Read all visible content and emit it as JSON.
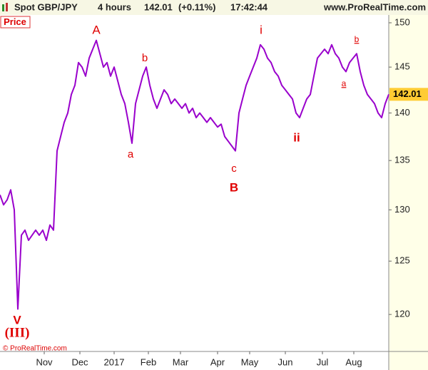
{
  "header": {
    "symbol": "Spot GBP/JPY",
    "timeframe": "4 hours",
    "change": "(+0.11%)",
    "time": "17:42:44",
    "site": "www.ProRealTime.com"
  },
  "panel_label": "Price",
  "copyright": "© ProRealTime.com",
  "chart_data": {
    "type": "line",
    "log_scale": true,
    "color": "#9900cc",
    "x": [
      0,
      1,
      2,
      3,
      4,
      5,
      6,
      7,
      8,
      9,
      10,
      11,
      12,
      13,
      14,
      15,
      16,
      17,
      18,
      19,
      20,
      21,
      22,
      23,
      24,
      25,
      26,
      27,
      28,
      29,
      30,
      31,
      32,
      33,
      34,
      35,
      36,
      37,
      38,
      39,
      40,
      41,
      42,
      43,
      44,
      45,
      46,
      47,
      48,
      49,
      50,
      51,
      52,
      53,
      54,
      55,
      56,
      57,
      58,
      59,
      60,
      61,
      62,
      63,
      64,
      65,
      66,
      67,
      68,
      69,
      70,
      71,
      72,
      73,
      74,
      75,
      76,
      77,
      78,
      79,
      80,
      81,
      82,
      83,
      84,
      85,
      86,
      87,
      88,
      89,
      90,
      91,
      92,
      93,
      94,
      95,
      96,
      97,
      98,
      99,
      100,
      101,
      102,
      103,
      104,
      105,
      106,
      107,
      108,
      109
    ],
    "values": [
      131.5,
      130.5,
      131,
      132,
      130,
      120.5,
      127.5,
      128,
      127,
      127.5,
      128,
      127.5,
      128,
      127,
      128.5,
      128,
      136,
      137.5,
      139,
      140,
      142,
      143,
      145.5,
      145,
      144,
      146,
      147,
      148,
      146.5,
      145,
      145.5,
      144,
      145,
      143.5,
      142,
      141,
      139,
      136.8,
      141,
      142.5,
      144,
      145,
      143,
      141.5,
      140.5,
      141.5,
      142.5,
      142,
      141,
      141.5,
      141,
      140.5,
      141,
      140,
      140.5,
      139.5,
      140,
      139.5,
      139,
      139.5,
      139,
      138.5,
      138.8,
      137.5,
      137,
      136.5,
      136,
      140,
      141.5,
      143,
      144,
      145,
      146,
      147.5,
      147,
      146,
      145.5,
      144.5,
      144,
      143,
      142.5,
      142,
      141.5,
      140,
      139.5,
      140.5,
      141.5,
      142,
      144,
      146,
      146.5,
      147,
      146.5,
      147.5,
      146.5,
      146,
      145,
      144.5,
      145.5,
      146,
      146.5,
      144.5,
      143,
      142,
      141.5,
      141,
      140,
      139.5,
      141,
      142.01
    ],
    "xlim": [
      0,
      109
    ],
    "xticks": [
      {
        "value": 12.4,
        "label": "Nov"
      },
      {
        "value": 22.4,
        "label": "Dec"
      },
      {
        "value": 32,
        "label": "2017"
      },
      {
        "value": 41.6,
        "label": "Feb"
      },
      {
        "value": 50.6,
        "label": "Mar"
      },
      {
        "value": 61,
        "label": "Apr"
      },
      {
        "value": 70,
        "label": "May"
      },
      {
        "value": 80,
        "label": "Jun"
      },
      {
        "value": 90.4,
        "label": "Jul"
      },
      {
        "value": 99.2,
        "label": "Aug"
      }
    ],
    "ylim": [
      116.65,
      150.9
    ],
    "yticks": [
      120,
      125,
      130,
      135,
      140,
      145,
      150
    ],
    "annotations": [
      "A",
      "b",
      "a",
      "c",
      "B",
      "i",
      "ii",
      "b",
      "a",
      "V",
      "(III)"
    ]
  }
}
